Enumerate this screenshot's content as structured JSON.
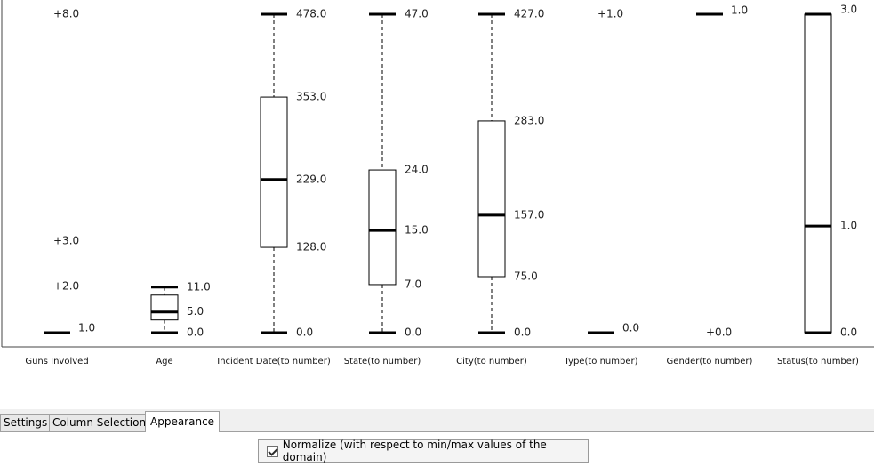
{
  "chart_data": {
    "type": "boxplot",
    "normalized": true,
    "columns": [
      {
        "name": "Guns Involved",
        "labels": {
          "max": "+8.0",
          "q3": "+3.0",
          "median": "+2.0",
          "q1": "1.0"
        },
        "style": "outliers",
        "min": 0,
        "max": 1,
        "outliers": [
          {
            "v": 1.0,
            "label": "+8.0"
          },
          {
            "v": 0.288,
            "label": "+3.0"
          },
          {
            "v": 0.145,
            "label": "+2.0"
          }
        ],
        "whisker_v": 0.0,
        "whisker_label": "1.0"
      },
      {
        "name": "Age",
        "labels": {
          "max": "11.0",
          "median": "5.0",
          "min": "0.0"
        },
        "style": "box",
        "vmin": 0.0,
        "q1": 0.04,
        "median": 0.065,
        "q3": 0.118,
        "vmax": 0.143,
        "tick_labels": [
          {
            "v": 0.143,
            "label": "11.0"
          },
          {
            "v": 0.065,
            "label": "5.0"
          },
          {
            "v": 0.0,
            "label": "0.0"
          }
        ]
      },
      {
        "name": "Incident Date(to number)",
        "style": "box",
        "vmin": 0.0,
        "q1": 0.268,
        "median": 0.481,
        "q3": 0.74,
        "vmax": 1.0,
        "tick_labels": [
          {
            "v": 1.0,
            "label": "478.0"
          },
          {
            "v": 0.74,
            "label": "353.0"
          },
          {
            "v": 0.481,
            "label": "229.0"
          },
          {
            "v": 0.268,
            "label": "128.0"
          },
          {
            "v": 0.0,
            "label": "0.0"
          }
        ]
      },
      {
        "name": "State(to number)",
        "style": "box",
        "vmin": 0.0,
        "q1": 0.151,
        "median": 0.321,
        "q3": 0.511,
        "vmax": 1.0,
        "tick_labels": [
          {
            "v": 1.0,
            "label": "47.0"
          },
          {
            "v": 0.511,
            "label": "24.0"
          },
          {
            "v": 0.321,
            "label": "15.0"
          },
          {
            "v": 0.151,
            "label": "7.0"
          },
          {
            "v": 0.0,
            "label": "0.0"
          }
        ]
      },
      {
        "name": "City(to number)",
        "style": "box",
        "vmin": 0.0,
        "q1": 0.176,
        "median": 0.369,
        "q3": 0.665,
        "vmax": 1.0,
        "tick_labels": [
          {
            "v": 1.0,
            "label": "427.0"
          },
          {
            "v": 0.665,
            "label": "283.0"
          },
          {
            "v": 0.369,
            "label": "157.0"
          },
          {
            "v": 0.176,
            "label": "75.0"
          },
          {
            "v": 0.0,
            "label": "0.0"
          }
        ]
      },
      {
        "name": "Type(to number)",
        "style": "outliers",
        "outliers": [
          {
            "v": 1.0,
            "label": "+1.0"
          }
        ],
        "whisker_v": 0.0,
        "whisker_label": "0.0"
      },
      {
        "name": "Gender(to number)",
        "style": "outliers-bottom",
        "outliers": [
          {
            "v": 0.0,
            "label": "+0.0"
          }
        ],
        "whisker_v": 1.0,
        "whisker_label": "1.0"
      },
      {
        "name": "Status(to number)",
        "style": "box",
        "vmin": 0.0,
        "q1": 0.0,
        "median": 0.335,
        "q3": 1.0,
        "vmax": 1.0,
        "tick_labels": [
          {
            "v": 1.0,
            "label": "3.0"
          },
          {
            "v": 0.335,
            "label": "1.0"
          },
          {
            "v": 0.0,
            "label": "0.0"
          }
        ]
      }
    ]
  },
  "tabs": [
    {
      "label": "Settings",
      "active": false
    },
    {
      "label": "Column Selection",
      "active": false
    },
    {
      "label": "Appearance",
      "active": true
    }
  ],
  "options": {
    "normalize_label": "Normalize (with respect to min/max values of the domain)",
    "normalize_checked": true
  }
}
